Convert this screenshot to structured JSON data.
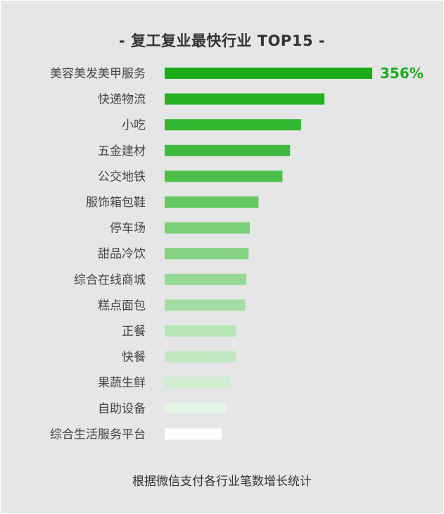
{
  "title": "- 复工复业最快行业 TOP15 -",
  "footer": "根据微信支付各行业笔数增长统计",
  "chart_data": {
    "type": "bar",
    "orientation": "horizontal",
    "title": "- 复工复业最快行业 TOP15 -",
    "categories": [
      "美容美发美甲服务",
      "快递物流",
      "小吃",
      "五金建材",
      "公交地铁",
      "服饰箱包鞋",
      "停车场",
      "甜品冷饮",
      "综合在线商城",
      "糕点面包",
      "正餐",
      "快餐",
      "果蔬生鲜",
      "自助设备",
      "综合生活服务平台"
    ],
    "values": [
      356,
      274,
      234,
      215,
      202,
      161,
      146,
      144,
      140,
      138,
      122,
      122,
      112,
      107,
      98
    ],
    "data_labels": [
      "356%",
      "",
      "",
      "",
      "",
      "",
      "",
      "",
      "",
      "",
      "",
      "",
      "",
      "",
      ""
    ],
    "colors": [
      "#1aad19",
      "#26b224",
      "#33b631",
      "#40ba3e",
      "#4dbf4b",
      "#64c862",
      "#7acf78",
      "#83d281",
      "#96d994",
      "#a3dda1",
      "#b7e5b6",
      "#c2e8c1",
      "#d1edd0",
      "#e6f4e6",
      "#ffffff"
    ],
    "value_label_color": "#1aad19",
    "xlabel": "",
    "ylabel": "",
    "xlim": [
      0,
      356
    ],
    "grid": false,
    "legend": "none"
  }
}
